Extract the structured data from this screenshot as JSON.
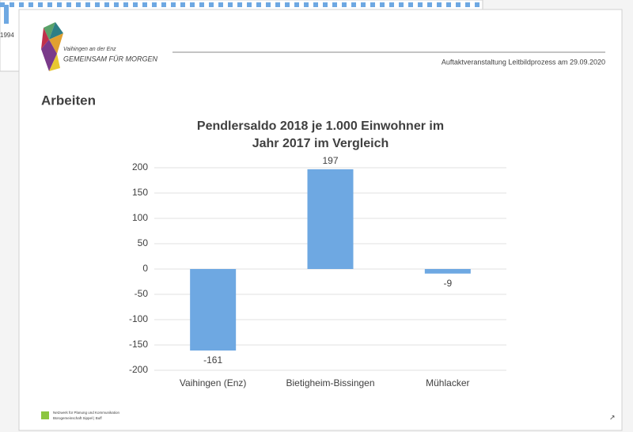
{
  "background_label": "1994",
  "slide": {
    "logo_small": "Vaihingen an der Enz",
    "logo_main": "GEMEINSAM FÜR MORGEN",
    "event": "Auftaktveranstaltung  Leitbildprozess  am  29.09.2020",
    "heading": "Arbeiten",
    "footer_line1": "Netzwerk für Planung und Kommunikation",
    "footer_line2": "Bürogemeinschaft Sippel | Buff"
  },
  "chart_data": {
    "type": "bar",
    "title": [
      "Pendlersaldo 2018 je 1.000 Einwohner im",
      "Jahr 2017 im Vergleich"
    ],
    "categories": [
      "Vaihingen (Enz)",
      "Bietigheim-Bissingen",
      "Mühlacker"
    ],
    "values": [
      -161,
      197,
      -9
    ],
    "color": "#6ea8e2",
    "ylim": [
      -200,
      200
    ],
    "yticks": [
      -200,
      -150,
      -100,
      -50,
      0,
      50,
      100,
      150,
      200
    ],
    "grid": true
  }
}
